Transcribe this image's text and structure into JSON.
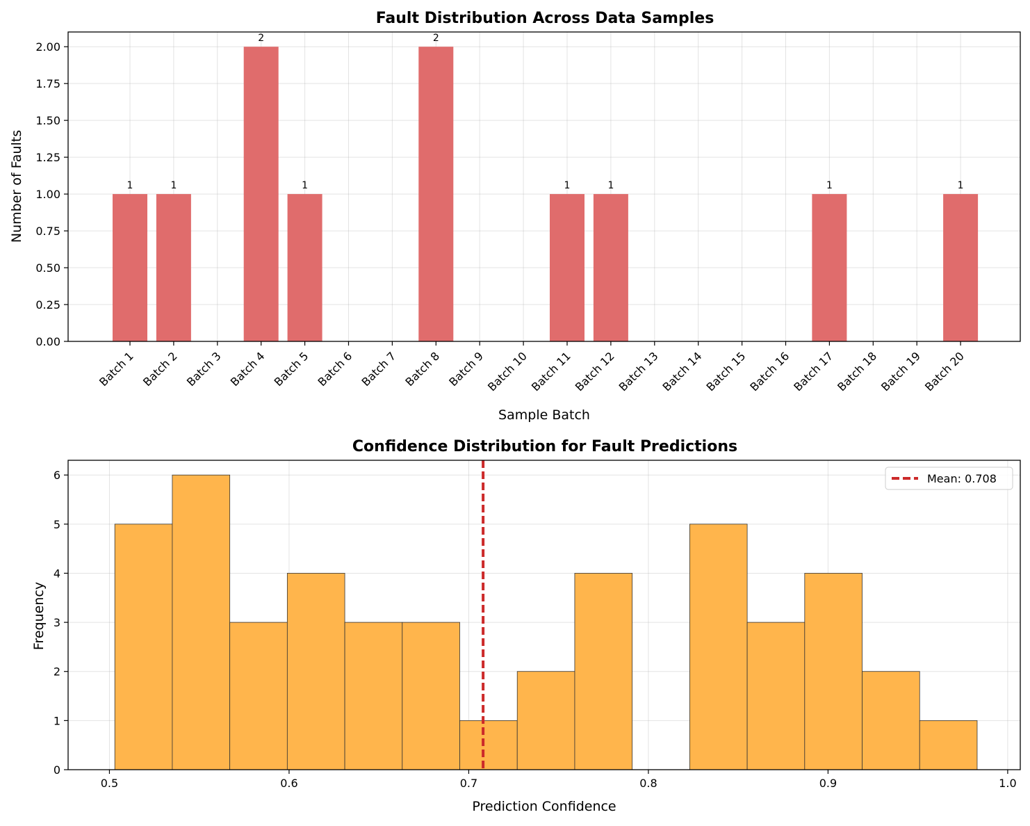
{
  "chart_data": [
    {
      "type": "bar",
      "title": "Fault Distribution Across Data Samples",
      "xlabel": "Sample Batch",
      "ylabel": "Number of Faults",
      "categories": [
        "Batch 1",
        "Batch 2",
        "Batch 3",
        "Batch 4",
        "Batch 5",
        "Batch 6",
        "Batch 7",
        "Batch 8",
        "Batch 9",
        "Batch 10",
        "Batch 11",
        "Batch 12",
        "Batch 13",
        "Batch 14",
        "Batch 15",
        "Batch 16",
        "Batch 17",
        "Batch 18",
        "Batch 19",
        "Batch 20"
      ],
      "values": [
        1,
        1,
        0,
        2,
        1,
        0,
        0,
        2,
        0,
        0,
        1,
        1,
        0,
        0,
        0,
        0,
        1,
        0,
        0,
        1
      ],
      "ylim": [
        0,
        2.1
      ],
      "yticks": [
        "0.00",
        "0.25",
        "0.50",
        "0.75",
        "1.00",
        "1.25",
        "1.50",
        "1.75",
        "2.00"
      ],
      "bar_color": "#e06c6c",
      "grid": true,
      "data_labels": true
    },
    {
      "type": "histogram",
      "title": "Confidence Distribution for Fault Predictions",
      "xlabel": "Prediction Confidence",
      "ylabel": "Frequency",
      "bin_edges": [
        0.503,
        0.535,
        0.567,
        0.599,
        0.631,
        0.663,
        0.695,
        0.727,
        0.759,
        0.791,
        0.823,
        0.855,
        0.887,
        0.919,
        0.951,
        0.983
      ],
      "counts": [
        5,
        6,
        3,
        4,
        3,
        3,
        1,
        2,
        4,
        0,
        5,
        3,
        4,
        2,
        1
      ],
      "xlim": [
        0.477,
        1.007
      ],
      "ylim": [
        0,
        6.3
      ],
      "xticks": [
        "0.5",
        "0.6",
        "0.7",
        "0.8",
        "0.9",
        "1.0"
      ],
      "yticks": [
        "0",
        "1",
        "2",
        "3",
        "4",
        "5",
        "6"
      ],
      "bar_color": "#ffb54c",
      "mean_line": {
        "value": 0.708,
        "color": "#cc2a2a",
        "label": "Mean: 0.708"
      },
      "legend_position": "top-right",
      "grid": true
    }
  ]
}
